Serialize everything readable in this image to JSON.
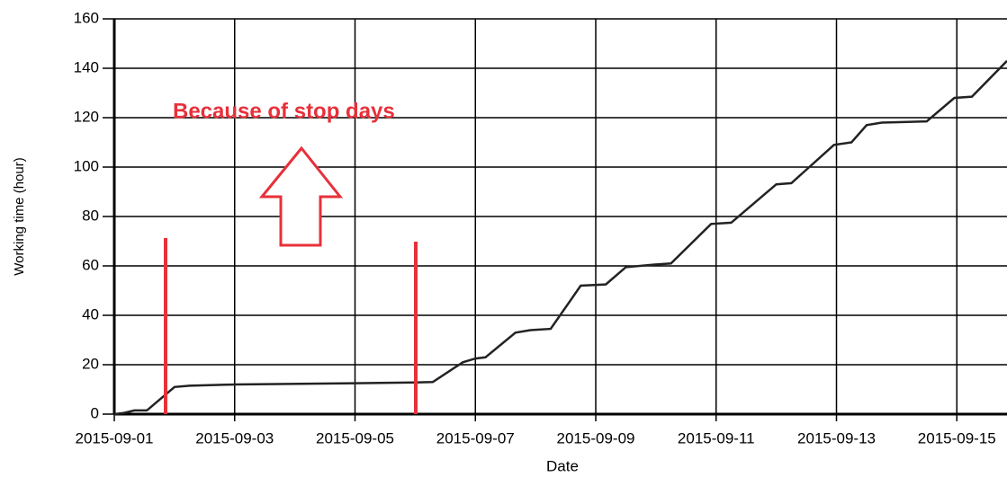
{
  "chart_data": {
    "type": "line",
    "xlabel": "Date",
    "ylabel": "Working time (hour)",
    "annotation": "Because of stop days",
    "color": "#222222",
    "grid": true,
    "xlim": [
      "2015-09-01",
      "2015-09-15T20:00"
    ],
    "xticks": [
      "2015-09-01",
      "2015-09-03",
      "2015-09-05",
      "2015-09-07",
      "2015-09-09",
      "2015-09-11",
      "2015-09-13",
      "2015-09-15"
    ],
    "ylim": [
      0,
      160
    ],
    "yticks": [
      0,
      20,
      40,
      60,
      80,
      100,
      120,
      140,
      160
    ],
    "x": [
      "2015-09-01T00:00",
      "2015-09-01T04:00",
      "2015-09-01T08:00",
      "2015-09-01T13:00",
      "2015-09-02T00:00",
      "2015-09-02T06:00",
      "2015-09-03T00:00",
      "2015-09-05T00:00",
      "2015-09-06T00:00",
      "2015-09-06T07:00",
      "2015-09-06T19:00",
      "2015-09-07T00:00",
      "2015-09-07T04:00",
      "2015-09-07T16:00",
      "2015-09-07T22:00",
      "2015-09-08T06:00",
      "2015-09-08T18:00",
      "2015-09-09T04:00",
      "2015-09-09T12:00",
      "2015-09-09T23:00",
      "2015-09-10T06:00",
      "2015-09-10T22:00",
      "2015-09-11T06:00",
      "2015-09-12T00:00",
      "2015-09-12T06:00",
      "2015-09-12T23:00",
      "2015-09-13T06:00",
      "2015-09-13T12:00",
      "2015-09-13T18:00",
      "2015-09-14T12:00",
      "2015-09-14T23:00",
      "2015-09-15T06:00",
      "2015-09-15T20:00"
    ],
    "values": [
      0,
      0.5,
      1.5,
      1.5,
      11,
      11.5,
      12,
      12.5,
      12.8,
      13,
      21,
      22.5,
      23,
      33,
      34,
      34.5,
      52,
      52.5,
      59.5,
      60.5,
      61,
      77,
      77.5,
      93,
      93.5,
      109,
      110,
      117,
      118,
      118.5,
      128,
      128.5,
      143
    ]
  }
}
